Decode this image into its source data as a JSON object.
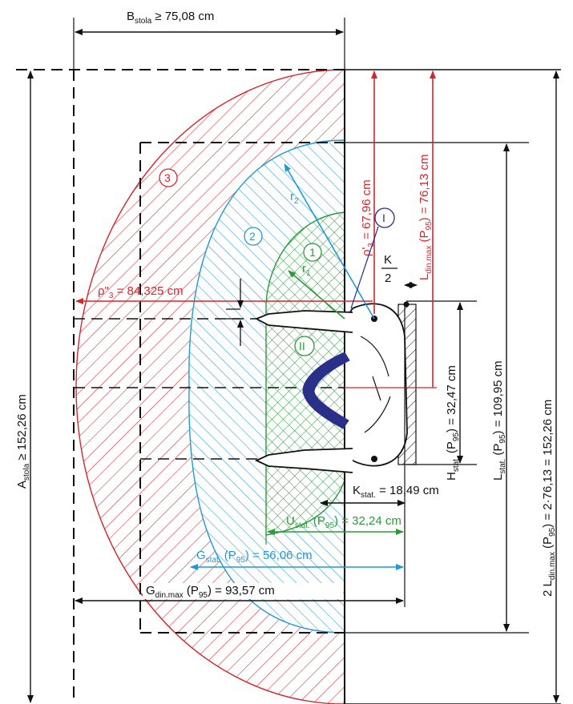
{
  "colors": {
    "red": "#d4262c",
    "blue": "#1f9ad6",
    "green": "#2a9a3a",
    "navy": "#2a2f8a",
    "black": "#111111"
  },
  "labels": {
    "b_stola": {
      "main": "B",
      "sub": "stola",
      "rest": " ≥ 75,08 cm"
    },
    "a_stola": {
      "main": "A",
      "sub": "stola",
      "rest": " ≥ 152,26 cm"
    },
    "two_l_din": {
      "pre": "2 L",
      "sub": "din.max",
      "rest": " (P",
      "sub2": "95",
      "rest2": ") = 2·76,13 = 152,26 cm"
    },
    "rho3_prime": {
      "pre": "ρ'",
      "sub": "3",
      "rest": " = 67,96 cm"
    },
    "l_din": {
      "pre": "L",
      "sub": "din.max",
      "rest": " (P",
      "sub2": "95",
      "rest2": ") = 76,13 cm"
    },
    "rho3_dprime": {
      "pre": "ρ\"",
      "sub": "3",
      "rest": " = 84,325 cm"
    },
    "k_top": "K",
    "k_bottom": "2",
    "h_stat": {
      "pre": "H",
      "sub": "stat.",
      "rest": " (P",
      "sub2": "95",
      "rest2": ") = 32,47 cm"
    },
    "l_stat": {
      "pre": "L",
      "sub": "stat.",
      "rest": " (P",
      "sub2": "95",
      "rest2": ") = 109,95 cm"
    },
    "k_stat": {
      "pre": "K",
      "sub": "stat.",
      "rest": " = 18,49 cm"
    },
    "u_stat": {
      "pre": "U",
      "sub": "stat.",
      "rest": " (P",
      "sub2": "95",
      "rest2": ") = 32,24 cm"
    },
    "g_stat": {
      "pre": "G",
      "sub": "stat.",
      "rest": " (P",
      "sub2": "95",
      "rest2": ") = 56,06 cm"
    },
    "g_din": {
      "pre": "G",
      "sub": "din.max",
      "rest": " (P",
      "sub2": "95",
      "rest2": ") = 93,57 cm"
    },
    "r1": {
      "pre": "r",
      "sub": "1"
    },
    "r2": {
      "pre": "r",
      "sub": "2"
    }
  },
  "zones": {
    "z1": "1",
    "z2": "2",
    "z3": "3",
    "zI": "I",
    "zII": "II"
  }
}
